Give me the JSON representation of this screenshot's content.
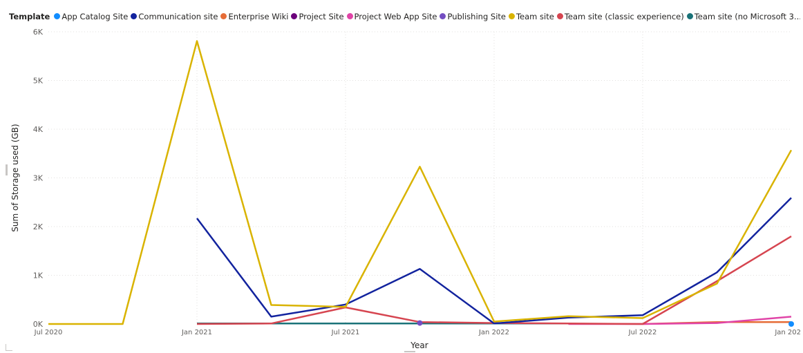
{
  "legend": {
    "title": "Template",
    "items": [
      {
        "label": "App Catalog Site",
        "color": "#118DFF"
      },
      {
        "label": "Communication site",
        "color": "#12239E"
      },
      {
        "label": "Enterprise Wiki",
        "color": "#E66C37"
      },
      {
        "label": "Project Site",
        "color": "#6B007B"
      },
      {
        "label": "Project Web App Site",
        "color": "#E044A7"
      },
      {
        "label": "Publishing Site",
        "color": "#744EC2"
      },
      {
        "label": "Team site",
        "color": "#D9B300"
      },
      {
        "label": "Team site (classic experience)",
        "color": "#D64550"
      },
      {
        "label": "Team site (no Microsoft 3...",
        "color": "#197278"
      }
    ]
  },
  "chart_data": {
    "type": "line",
    "xlabel": "Year",
    "ylabel": "Sum of Storage used (GB)",
    "ylim": [
      0,
      6000
    ],
    "yticks": [
      0,
      1000,
      2000,
      3000,
      4000,
      5000,
      6000
    ],
    "ytick_labels": [
      "0K",
      "1K",
      "2K",
      "3K",
      "4K",
      "5K",
      "6K"
    ],
    "xlim": [
      "2020-07",
      "2023-01"
    ],
    "xticks": [
      "2020-07",
      "2021-01",
      "2021-07",
      "2022-01",
      "2022-07",
      "2023-01"
    ],
    "xtick_labels": [
      "Jul 2020",
      "Jan 2021",
      "Jul 2021",
      "Jan 2022",
      "Jul 2022",
      "Jan 202"
    ],
    "grid": true,
    "legend_position": "top",
    "series": [
      {
        "name": "Team site",
        "color": "#D9B300",
        "x": [
          "2020-07",
          "2020-10",
          "2021-01",
          "2021-04",
          "2021-07",
          "2021-10",
          "2022-01",
          "2022-04",
          "2022-07",
          "2022-10",
          "2023-01"
        ],
        "y": [
          0,
          0,
          5810,
          390,
          350,
          3230,
          50,
          160,
          120,
          830,
          3570
        ]
      },
      {
        "name": "Communication site",
        "color": "#12239E",
        "x": [
          "2021-01",
          "2021-04",
          "2021-07",
          "2021-10",
          "2022-01",
          "2022-04",
          "2022-07",
          "2022-10",
          "2023-01"
        ],
        "y": [
          2170,
          150,
          400,
          1130,
          10,
          130,
          180,
          1060,
          2590
        ]
      },
      {
        "name": "Team site (classic experience)",
        "color": "#D64550",
        "x": [
          "2021-01",
          "2021-04",
          "2021-07",
          "2021-10",
          "2022-01",
          "2022-04",
          "2022-07",
          "2022-10",
          "2023-01"
        ],
        "y": [
          0,
          10,
          340,
          40,
          20,
          10,
          0,
          880,
          1800
        ]
      },
      {
        "name": "Project Web App Site",
        "color": "#E044A7",
        "x": [
          "2022-04",
          "2022-07",
          "2022-10",
          "2023-01"
        ],
        "y": [
          0,
          0,
          20,
          150
        ]
      },
      {
        "name": "Enterprise Wiki",
        "color": "#E66C37",
        "x": [
          "2022-07",
          "2022-10",
          "2023-01"
        ],
        "y": [
          0,
          40,
          40
        ]
      },
      {
        "name": "Publishing Site",
        "color": "#744EC2",
        "x": [
          "2021-10"
        ],
        "y": [
          20
        ]
      },
      {
        "name": "Team site (no Microsoft 3...",
        "color": "#197278",
        "x": [
          "2021-01",
          "2021-04",
          "2021-07",
          "2021-10",
          "2022-01",
          "2022-04"
        ],
        "y": [
          10,
          10,
          10,
          10,
          10,
          10
        ]
      },
      {
        "name": "App Catalog Site",
        "color": "#118DFF",
        "x": [
          "2023-01"
        ],
        "y": [
          0
        ]
      }
    ]
  }
}
